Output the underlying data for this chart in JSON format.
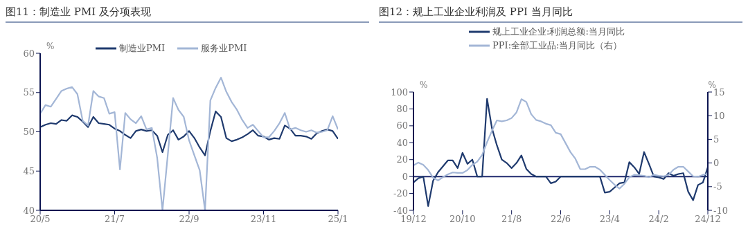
{
  "chart_data": [
    {
      "type": "line",
      "title": "图11：制造业 PMI 及分项表现",
      "ylabel": "%",
      "categories": [
        "20/5",
        null,
        null,
        null,
        null,
        null,
        null,
        null,
        null,
        null,
        null,
        null,
        null,
        null,
        "21/7",
        null,
        null,
        null,
        null,
        null,
        null,
        null,
        null,
        null,
        null,
        null,
        null,
        null,
        "22/9",
        null,
        null,
        null,
        null,
        null,
        null,
        null,
        null,
        null,
        null,
        null,
        null,
        null,
        "23/11",
        null,
        null,
        null,
        null,
        null,
        null,
        null,
        null,
        null,
        null,
        null,
        null,
        null,
        "25/1"
      ],
      "series": [
        {
          "name": "制造业PMI",
          "color": "#1f3a6e",
          "values": [
            50.6,
            50.9,
            51.1,
            51.0,
            51.5,
            51.4,
            52.1,
            51.9,
            51.3,
            50.6,
            51.9,
            51.1,
            51.0,
            50.9,
            50.4,
            50.1,
            49.6,
            49.2,
            50.1,
            50.3,
            50.1,
            50.2,
            49.5,
            47.4,
            49.6,
            50.2,
            49.0,
            49.4,
            50.1,
            49.2,
            48.0,
            47.0,
            50.1,
            52.6,
            51.9,
            49.2,
            48.8,
            49.0,
            49.3,
            49.7,
            50.2,
            49.5,
            49.4,
            49.0,
            49.2,
            49.1,
            50.8,
            50.4,
            49.5,
            49.5,
            49.4,
            49.1,
            49.8,
            50.1,
            50.3,
            50.1,
            49.1
          ]
        },
        {
          "name": "服务业PMI",
          "color": "#a3b6d6",
          "values": [
            52.3,
            53.4,
            53.2,
            54.2,
            55.2,
            55.5,
            55.7,
            54.8,
            51.4,
            50.8,
            55.2,
            54.5,
            54.3,
            52.3,
            52.5,
            45.2,
            52.4,
            51.6,
            51.1,
            52.0,
            50.3,
            50.5,
            46.7,
            40.0,
            47.1,
            54.3,
            52.8,
            51.9,
            48.9,
            47.0,
            45.1,
            40.0,
            54.0,
            55.6,
            56.9,
            55.1,
            53.8,
            52.8,
            51.5,
            50.5,
            50.9,
            50.1,
            49.3,
            49.3,
            50.1,
            51.1,
            52.4,
            50.3,
            50.5,
            50.2,
            50.0,
            50.2,
            49.9,
            50.0,
            50.2,
            52.0,
            50.3
          ]
        }
      ],
      "ylim": [
        40,
        60
      ],
      "yticks": [
        40,
        45,
        50,
        55,
        60
      ],
      "legend": "top",
      "marker": "none",
      "line_style": "solid"
    },
    {
      "type": "line",
      "title": "图12：规上工业企业利润及 PPI 当月同比",
      "ylabel": "%",
      "y2label": "%",
      "categories": [
        "19/12",
        null,
        null,
        null,
        null,
        null,
        null,
        null,
        null,
        null,
        "20/10",
        null,
        null,
        null,
        null,
        null,
        null,
        null,
        null,
        null,
        "21/8",
        null,
        null,
        null,
        null,
        null,
        null,
        null,
        null,
        null,
        "22/6",
        null,
        null,
        null,
        null,
        null,
        null,
        null,
        null,
        null,
        "23/4",
        null,
        null,
        null,
        null,
        null,
        null,
        null,
        null,
        null,
        "24/2",
        null,
        null,
        null,
        null,
        null,
        null,
        null,
        null,
        null,
        "24/12"
      ],
      "series": [
        {
          "name": "规上工业企业:利润总额:当月同比",
          "color": "#1f3a6e",
          "values": [
            -7,
            -2,
            0,
            -35,
            -5,
            5,
            12,
            19,
            19,
            10,
            28,
            15,
            20,
            0,
            0,
            92,
            57,
            37,
            20,
            16,
            10,
            16,
            25,
            9,
            3,
            0,
            0,
            0,
            -8,
            -6,
            0,
            0,
            0,
            0,
            0,
            0,
            0,
            0,
            0,
            -19,
            -18,
            -13,
            -8,
            -7,
            17,
            11,
            3,
            29,
            15,
            0,
            -1,
            -3,
            4,
            1,
            3,
            4,
            -18,
            -28,
            -10,
            -7,
            11
          ]
        },
        {
          "name": "PPI:全部工业品:当月同比（右）",
          "color": "#a3b6d6",
          "axis": "y2",
          "values": [
            -0.5,
            0.1,
            -0.4,
            -1.5,
            -3.1,
            -3.7,
            -3.0,
            -2.4,
            -2.0,
            -2.1,
            -2.1,
            -1.5,
            -0.4,
            0.3,
            1.7,
            4.4,
            6.8,
            9.0,
            8.8,
            9.0,
            9.5,
            10.7,
            13.5,
            12.9,
            10.3,
            9.1,
            8.8,
            8.3,
            8.0,
            6.4,
            6.1,
            4.2,
            2.3,
            0.9,
            -1.3,
            -1.3,
            -0.8,
            -0.8,
            -1.4,
            -2.5,
            -3.6,
            -4.6,
            -5.4,
            -4.4,
            -3.0,
            -2.5,
            -2.6,
            -2.7,
            -3.0,
            -2.5,
            -2.7,
            -2.8,
            -2.5,
            -1.4,
            -0.8,
            -0.8,
            -1.8,
            -2.8,
            -2.9,
            -2.5,
            -2.3
          ]
        }
      ],
      "ylim": [
        -40,
        100
      ],
      "yticks": [
        -40,
        -20,
        0,
        20,
        40,
        60,
        80,
        100
      ],
      "y2lim": [
        -10,
        15
      ],
      "y2ticks": [
        -10,
        -5,
        0,
        5,
        10,
        15
      ],
      "ref_lines": [
        {
          "axis": "y",
          "value": 0,
          "color": "#1f2a6e"
        }
      ],
      "legend": "top",
      "marker": "none",
      "line_style": "solid"
    }
  ]
}
